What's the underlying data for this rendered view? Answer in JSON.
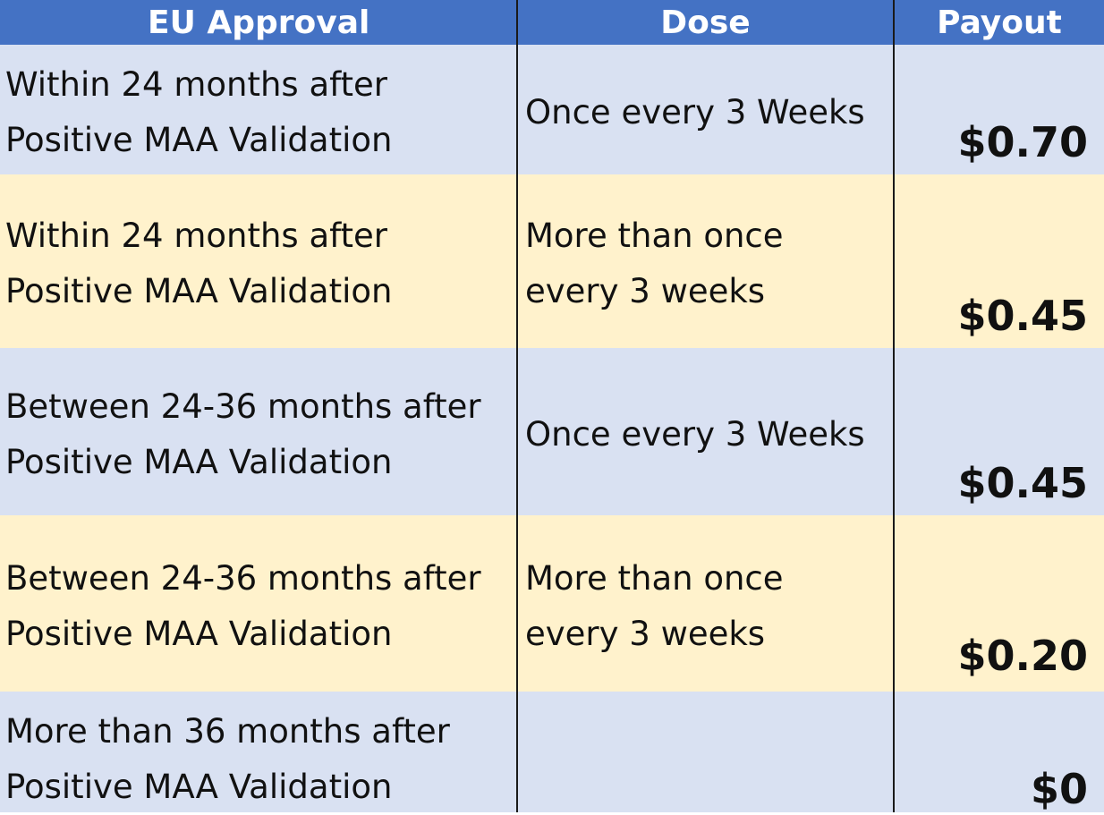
{
  "header": {
    "approval": "EU Approval",
    "dose": "Dose",
    "payout": "Payout"
  },
  "rows": [
    {
      "approval_line1": "Within 24 months after",
      "approval_line2": "Positive MAA Validation",
      "dose_line1": "Once every 3 Weeks",
      "dose_line2": "",
      "payout": "$0.70"
    },
    {
      "approval_line1": "Within 24 months after",
      "approval_line2": "Positive MAA Validation",
      "dose_line1": "More than once",
      "dose_line2": "every 3 weeks",
      "payout": "$0.45"
    },
    {
      "approval_line1": "Between 24-36 months after",
      "approval_line2": "Positive MAA Validation",
      "dose_line1": "Once every 3 Weeks",
      "dose_line2": "",
      "payout": "$0.45"
    },
    {
      "approval_line1": "Between 24-36 months after",
      "approval_line2": "Positive MAA Validation",
      "dose_line1": "More than once",
      "dose_line2": "every 3 weeks",
      "payout": "$0.20"
    },
    {
      "approval_line1": "More than 36 months after",
      "approval_line2": "Positive MAA Validation",
      "dose_line1": "",
      "dose_line2": "",
      "payout": "$0"
    }
  ],
  "colors": {
    "header_bg": "#4472c4",
    "row_blue": "#d9e1f2",
    "row_yellow": "#fff2cc",
    "header_text": "#ffffff"
  }
}
